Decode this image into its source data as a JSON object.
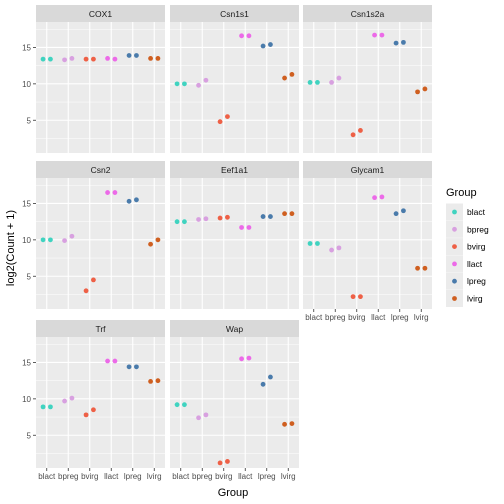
{
  "chart_data": {
    "type": "scatter",
    "xlabel": "Group",
    "ylabel": "log2(Count + 1)",
    "categories": [
      "blact",
      "bpreg",
      "bvirg",
      "llact",
      "lpreg",
      "lvirg"
    ],
    "yticks": [
      5,
      10,
      15
    ],
    "legend": {
      "title": "Group",
      "position": "right",
      "entries": [
        "blact",
        "bpreg",
        "bvirg",
        "llact",
        "lpreg",
        "lvirg"
      ]
    },
    "colors": {
      "blact": "#40d3c0",
      "bpreg": "#d8a0e0",
      "bvirg": "#ee6046",
      "llact": "#ec6ae8",
      "lpreg": "#4a7bab",
      "lvirg": "#cf5f20"
    },
    "panel_bg": "#ebebeb",
    "strip_bg": "#d9d9d9",
    "grid_color": "#ffffff",
    "panels": [
      {
        "title": "COX1",
        "ylim": [
          0.5,
          18.5
        ],
        "points": {
          "blact": [
            13.4,
            13.4
          ],
          "bpreg": [
            13.3,
            13.5
          ],
          "bvirg": [
            13.4,
            13.4
          ],
          "llact": [
            13.5,
            13.4
          ],
          "lpreg": [
            13.9,
            13.9
          ],
          "lvirg": [
            13.5,
            13.5
          ]
        }
      },
      {
        "title": "Csn1s1",
        "ylim": [
          0.5,
          18.5
        ],
        "points": {
          "blact": [
            10.0,
            10.0
          ],
          "bpreg": [
            9.8,
            10.5
          ],
          "bvirg": [
            4.8,
            5.5
          ],
          "llact": [
            16.6,
            16.6
          ],
          "lpreg": [
            15.2,
            15.4
          ],
          "lvirg": [
            10.8,
            11.3
          ]
        }
      },
      {
        "title": "Csn1s2a",
        "ylim": [
          0.5,
          18.5
        ],
        "points": {
          "blact": [
            10.2,
            10.2
          ],
          "bpreg": [
            10.2,
            10.8
          ],
          "bvirg": [
            3.0,
            3.6
          ],
          "llact": [
            16.7,
            16.7
          ],
          "lpreg": [
            15.6,
            15.7
          ],
          "lvirg": [
            8.9,
            9.3
          ]
        }
      },
      {
        "title": "Csn2",
        "ylim": [
          0.5,
          18.5
        ],
        "points": {
          "blact": [
            10.0,
            10.0
          ],
          "bpreg": [
            9.9,
            10.5
          ],
          "bvirg": [
            3.0,
            4.5
          ],
          "llact": [
            16.5,
            16.5
          ],
          "lpreg": [
            15.3,
            15.5
          ],
          "lvirg": [
            9.4,
            10.0
          ]
        }
      },
      {
        "title": "Eef1a1",
        "ylim": [
          0.5,
          18.5
        ],
        "points": {
          "blact": [
            12.5,
            12.5
          ],
          "bpreg": [
            12.8,
            12.9
          ],
          "bvirg": [
            13.0,
            13.1
          ],
          "llact": [
            11.7,
            11.7
          ],
          "lpreg": [
            13.2,
            13.2
          ],
          "lvirg": [
            13.6,
            13.6
          ]
        }
      },
      {
        "title": "Glycam1",
        "ylim": [
          0.5,
          18.5
        ],
        "points": {
          "blact": [
            9.5,
            9.5
          ],
          "bpreg": [
            8.6,
            8.9
          ],
          "bvirg": [
            2.2,
            2.2
          ],
          "llact": [
            15.8,
            15.9
          ],
          "lpreg": [
            13.6,
            14.0
          ],
          "lvirg": [
            6.1,
            6.1
          ]
        }
      },
      {
        "title": "Trf",
        "ylim": [
          0.5,
          18.5
        ],
        "points": {
          "blact": [
            8.9,
            8.9
          ],
          "bpreg": [
            9.7,
            10.1
          ],
          "bvirg": [
            7.8,
            8.5
          ],
          "llact": [
            15.2,
            15.2
          ],
          "lpreg": [
            14.4,
            14.4
          ],
          "lvirg": [
            12.4,
            12.5
          ]
        }
      },
      {
        "title": "Wap",
        "ylim": [
          0.5,
          18.5
        ],
        "points": {
          "blact": [
            9.2,
            9.2
          ],
          "bpreg": [
            7.4,
            7.8
          ],
          "bvirg": [
            1.2,
            1.4
          ],
          "llact": [
            15.5,
            15.6
          ],
          "lpreg": [
            12.0,
            13.0
          ],
          "lvirg": [
            6.5,
            6.6
          ]
        }
      }
    ]
  }
}
